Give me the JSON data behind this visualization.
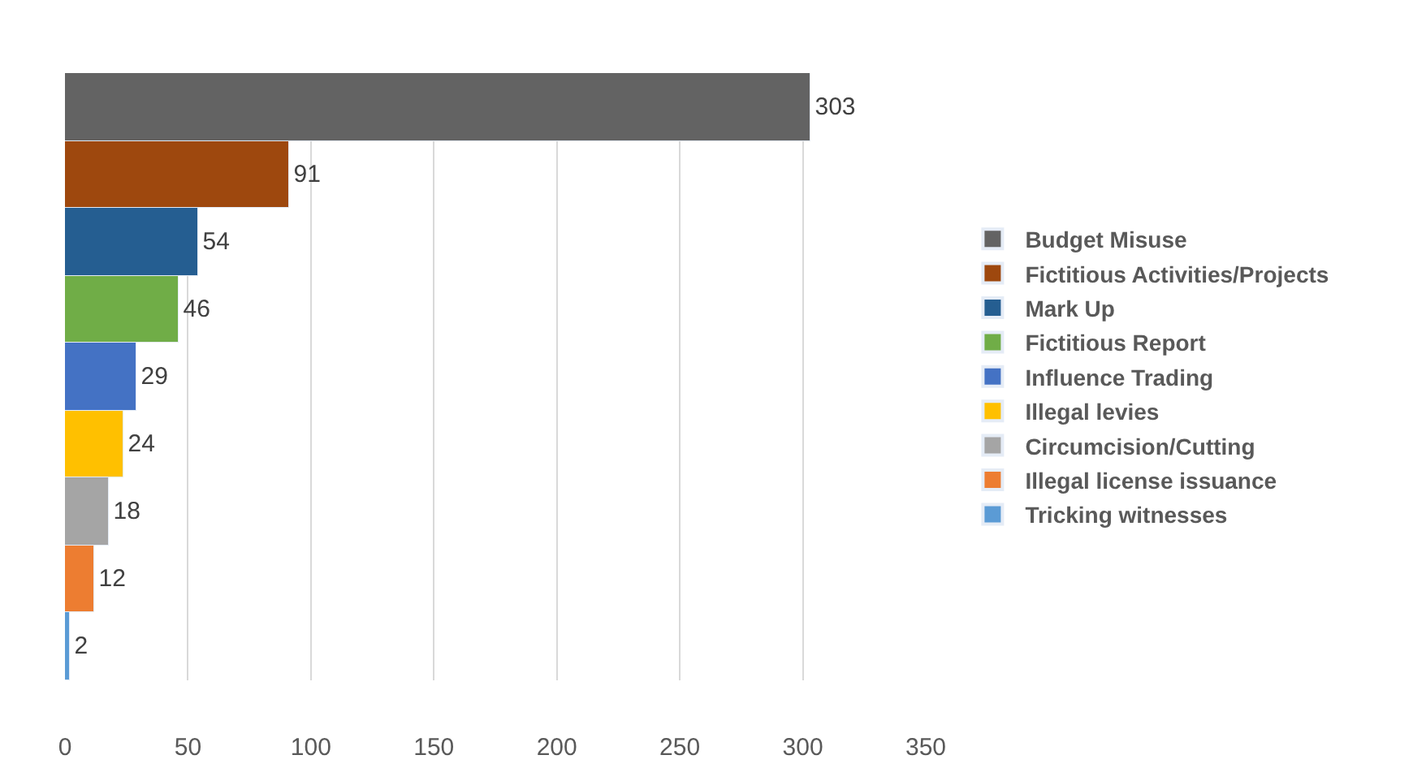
{
  "chart_data": {
    "type": "bar",
    "orientation": "horizontal",
    "categories": [
      null,
      null,
      null,
      null,
      null,
      null,
      null,
      null,
      null
    ],
    "series": [
      {
        "name": "Budget Misuse",
        "color": "#636363",
        "values": [
          303,
          null,
          null,
          null,
          null,
          null,
          null,
          null,
          null
        ]
      },
      {
        "name": "Fictitious Activities/Projects",
        "color": "#9e480e",
        "values": [
          null,
          91,
          null,
          null,
          null,
          null,
          null,
          null,
          null
        ]
      },
      {
        "name": "Mark Up",
        "color": "#255e91",
        "values": [
          null,
          null,
          54,
          null,
          null,
          null,
          null,
          null,
          null
        ]
      },
      {
        "name": "Fictitious Report",
        "color": "#70ad47",
        "values": [
          null,
          null,
          null,
          46,
          null,
          null,
          null,
          null,
          null
        ]
      },
      {
        "name": "Influence Trading",
        "color": "#4472c4",
        "values": [
          null,
          null,
          null,
          null,
          29,
          null,
          null,
          null,
          null
        ]
      },
      {
        "name": "Illegal levies",
        "color": "#ffc000",
        "values": [
          null,
          null,
          null,
          null,
          null,
          24,
          null,
          null,
          null
        ]
      },
      {
        "name": "Circumcision/Cutting",
        "color": "#a5a5a5",
        "values": [
          null,
          null,
          null,
          null,
          null,
          null,
          18,
          null,
          null
        ]
      },
      {
        "name": "Illegal license issuance",
        "color": "#ed7d31",
        "values": [
          null,
          null,
          null,
          null,
          null,
          null,
          null,
          12,
          null
        ]
      },
      {
        "name": "Tricking witnesses",
        "color": "#5b9bd5",
        "values": [
          null,
          null,
          null,
          null,
          null,
          null,
          null,
          null,
          2
        ]
      }
    ],
    "xlim": [
      0,
      350
    ],
    "xticks": [
      0,
      50,
      100,
      150,
      200,
      250,
      300,
      350
    ],
    "grid": "x",
    "legend": "right",
    "data_labels": true,
    "tick_labels": "x"
  }
}
